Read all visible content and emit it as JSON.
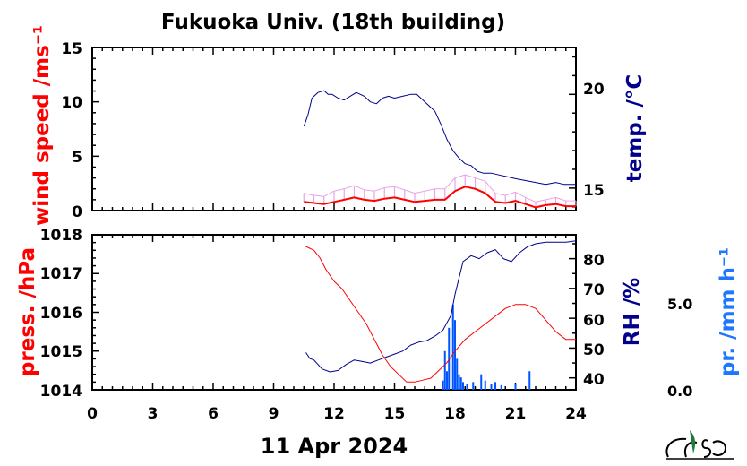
{
  "colors": {
    "red": "#ff0000",
    "navy": "#00008b",
    "blue": "#0055ff",
    "light_blue": "#1e78ff",
    "magenta_light": "#e9a3e9",
    "green": "#1f7a3a"
  },
  "chart_data": [
    {
      "type": "line",
      "title": "Fukuoka Univ. (18th building)",
      "xlabel": "11 Apr 2024",
      "x_ticks": [
        "0",
        "3",
        "6",
        "9",
        "12",
        "15",
        "18",
        "21",
        "24"
      ],
      "xlim": [
        0,
        24
      ],
      "left_axis": {
        "label": "wind speed /ms⁻¹",
        "ylim": [
          0,
          15
        ],
        "ticks": [
          "0",
          "5",
          "10",
          "15"
        ],
        "color": "red"
      },
      "right_axis": {
        "label": "temp. /°C",
        "ylim": [
          13.8,
          22.5
        ],
        "ticks": [
          "15",
          "20"
        ],
        "color": "navy"
      },
      "series": [
        {
          "name": "wind speed",
          "axis": "left",
          "color": "red",
          "x": [
            10.5,
            11,
            11.5,
            12,
            12.5,
            13,
            13.5,
            14,
            14.5,
            15,
            15.5,
            16,
            16.5,
            17,
            17.5,
            18,
            18.5,
            19,
            19.5,
            20,
            20.5,
            21,
            21.5,
            22,
            22.5,
            23,
            23.5,
            24
          ],
          "y": [
            0.8,
            0.7,
            0.6,
            0.8,
            1.0,
            1.2,
            1.0,
            0.9,
            1.1,
            1.2,
            1.0,
            0.8,
            0.9,
            1.0,
            1.0,
            1.8,
            2.2,
            2.0,
            1.6,
            0.8,
            0.7,
            0.9,
            0.6,
            0.3,
            0.5,
            0.6,
            0.4,
            0.4
          ]
        },
        {
          "name": "wind gust",
          "axis": "left",
          "color": "magenta_light",
          "x": [
            10.5,
            11,
            11.5,
            12,
            12.5,
            13,
            13.5,
            14,
            14.5,
            15,
            15.5,
            16,
            16.5,
            17,
            17.5,
            18,
            18.5,
            19,
            19.5,
            20,
            20.5,
            21,
            21.5,
            22,
            22.5,
            23,
            23.5,
            24
          ],
          "y": [
            1.6,
            1.4,
            1.3,
            1.8,
            2.0,
            2.3,
            1.9,
            1.8,
            2.1,
            2.2,
            1.9,
            1.6,
            1.8,
            2.0,
            2.0,
            3.0,
            3.3,
            3.0,
            2.7,
            1.6,
            1.4,
            1.7,
            1.2,
            0.8,
            1.0,
            1.2,
            0.9,
            0.9
          ]
        },
        {
          "name": "temperature",
          "axis": "right",
          "color": "navy",
          "x": [
            10.5,
            10.7,
            10.9,
            11.2,
            11.5,
            11.7,
            11.9,
            12.2,
            12.5,
            12.8,
            13.1,
            13.5,
            13.8,
            14.1,
            14.4,
            14.7,
            15.0,
            15.4,
            15.8,
            16.1,
            16.3,
            16.6,
            17.0,
            17.3,
            17.6,
            17.9,
            18.2,
            18.5,
            18.8,
            19.1,
            19.4,
            19.8,
            20.2,
            20.6,
            21.0,
            21.5,
            22.0,
            22.5,
            23.0,
            23.4,
            23.8,
            24.0
          ],
          "y": [
            18.3,
            18.9,
            19.8,
            20.1,
            20.2,
            20.0,
            20.0,
            19.8,
            19.7,
            19.9,
            20.1,
            19.9,
            19.6,
            19.5,
            19.8,
            19.9,
            19.8,
            19.9,
            20.0,
            20.0,
            19.8,
            19.5,
            19.1,
            18.4,
            17.6,
            17.0,
            16.6,
            16.3,
            16.2,
            15.9,
            15.8,
            15.8,
            15.7,
            15.6,
            15.5,
            15.4,
            15.3,
            15.2,
            15.3,
            15.2,
            15.2,
            15.2
          ]
        }
      ]
    },
    {
      "type": "line",
      "xlabel": "11 Apr 2024",
      "x_ticks": [
        "0",
        "3",
        "6",
        "9",
        "12",
        "15",
        "18",
        "21",
        "24"
      ],
      "xlim": [
        0,
        24
      ],
      "left_axis": {
        "label": "press. /hPa",
        "ylim": [
          1014,
          1018
        ],
        "ticks": [
          "1014",
          "1015",
          "1016",
          "1017",
          "1018"
        ],
        "color": "red"
      },
      "right_axis": {
        "label": "RH /%",
        "ylim": [
          36,
          88
        ],
        "ticks": [
          "40",
          "50",
          "60",
          "70",
          "80"
        ],
        "color": "navy"
      },
      "precip_axis": {
        "label": "pr. /mm h⁻¹",
        "ticks": [
          "0.0",
          "5.0"
        ],
        "ylim": [
          0,
          10
        ],
        "color": "blue"
      },
      "series": [
        {
          "name": "pressure",
          "axis": "left",
          "color": "red",
          "x": [
            10.6,
            11.0,
            11.3,
            11.6,
            12.0,
            12.4,
            12.8,
            13.2,
            13.6,
            14.0,
            14.4,
            14.8,
            15.2,
            15.6,
            16.0,
            16.4,
            16.8,
            17.2,
            17.6,
            18.0,
            18.5,
            19.0,
            19.5,
            20.0,
            20.5,
            21.0,
            21.5,
            22.0,
            22.5,
            23.0,
            23.5,
            24.0
          ],
          "y": [
            1017.7,
            1017.6,
            1017.4,
            1017.1,
            1016.8,
            1016.6,
            1016.3,
            1016.0,
            1015.7,
            1015.3,
            1014.9,
            1014.6,
            1014.4,
            1014.2,
            1014.2,
            1014.25,
            1014.3,
            1014.5,
            1014.7,
            1015.0,
            1015.3,
            1015.5,
            1015.7,
            1015.9,
            1016.1,
            1016.2,
            1016.2,
            1016.1,
            1015.8,
            1015.5,
            1015.3,
            1015.3
          ]
        },
        {
          "name": "relative humidity",
          "axis": "right",
          "color": "navy",
          "x": [
            10.6,
            10.8,
            11.0,
            11.4,
            11.8,
            12.2,
            12.6,
            13.0,
            13.4,
            13.8,
            14.2,
            14.6,
            15.0,
            15.4,
            15.8,
            16.2,
            16.6,
            17.0,
            17.4,
            17.8,
            18.0,
            18.4,
            18.8,
            19.2,
            19.6,
            20.0,
            20.4,
            20.8,
            21.2,
            21.6,
            22.0,
            22.5,
            23.0,
            23.5,
            24.0
          ],
          "y": [
            48.5,
            46.5,
            46.0,
            43.0,
            42.0,
            42.5,
            44.5,
            46.0,
            45.5,
            45.0,
            46.0,
            47.0,
            48.0,
            49.0,
            51.0,
            52.0,
            52.5,
            54.0,
            56.0,
            61.0,
            68.0,
            79.0,
            81.0,
            80.0,
            82.0,
            83.0,
            80.0,
            79.0,
            82.0,
            84.0,
            85.0,
            85.5,
            85.5,
            85.5,
            86.0
          ]
        },
        {
          "name": "precipitation",
          "axis": "precip",
          "color": "blue",
          "type": "bar",
          "x": [
            17.4,
            17.5,
            17.6,
            17.7,
            17.9,
            18.0,
            18.1,
            18.2,
            18.3,
            18.4,
            18.6,
            18.9,
            19.3,
            19.5,
            19.8,
            20.0,
            20.3,
            21.0,
            21.7
          ],
          "y": [
            0.6,
            2.5,
            1.2,
            4.0,
            5.5,
            4.5,
            2.0,
            1.0,
            0.8,
            0.5,
            0.4,
            0.5,
            1.0,
            0.6,
            0.4,
            0.5,
            0.3,
            0.4,
            1.2
          ]
        }
      ]
    }
  ]
}
